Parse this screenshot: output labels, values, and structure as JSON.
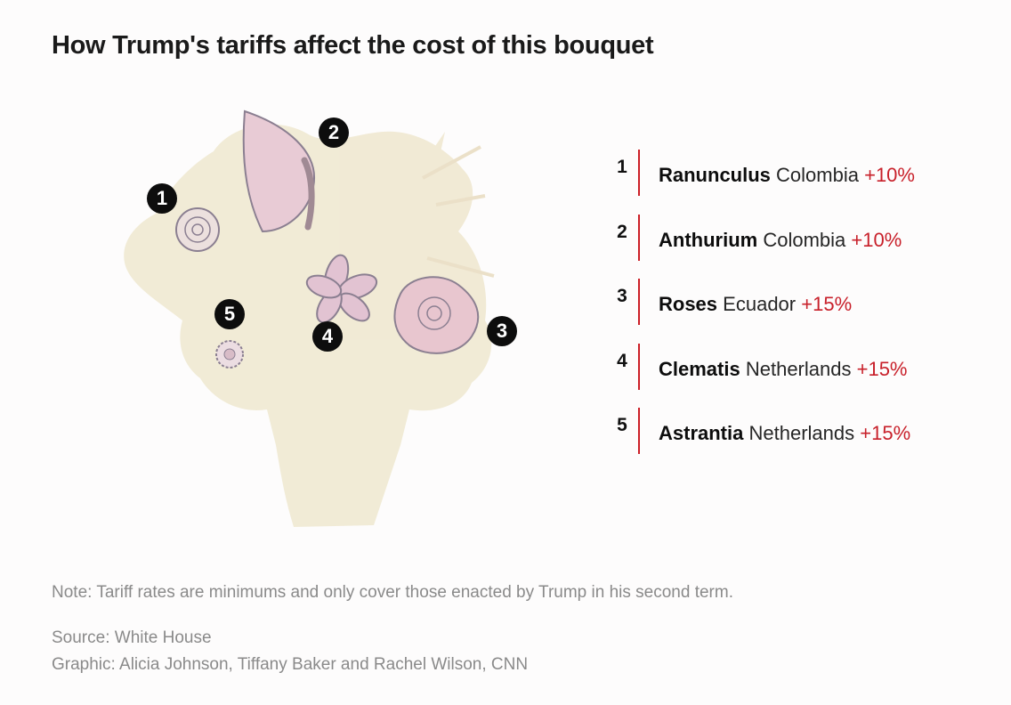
{
  "title": "How Trump's tariffs affect the cost of this bouquet",
  "markers": [
    "1",
    "2",
    "3",
    "4",
    "5"
  ],
  "legend": [
    {
      "number": "1",
      "flower": "Ranunculus",
      "country": "Colombia",
      "rate": "+10%"
    },
    {
      "number": "2",
      "flower": "Anthurium",
      "country": "Colombia",
      "rate": "+10%"
    },
    {
      "number": "3",
      "flower": "Roses",
      "country": "Ecuador",
      "rate": "+15%"
    },
    {
      "number": "4",
      "flower": "Clematis",
      "country": "Netherlands",
      "rate": "+15%"
    },
    {
      "number": "5",
      "flower": "Astrantia",
      "country": "Netherlands",
      "rate": "+15%"
    }
  ],
  "note": "Note: Tariff rates are minimums and only cover those enacted by Trump in his second term.",
  "source": "Source: White House",
  "credit": "Graphic: Alicia Johnson, Tiffany Baker and Rachel Wilson, CNN",
  "colors": {
    "accent": "#cc1f27",
    "bouquet": "#efe7cf",
    "petal": "#e7c9d3",
    "outline": "#8b7f91"
  }
}
